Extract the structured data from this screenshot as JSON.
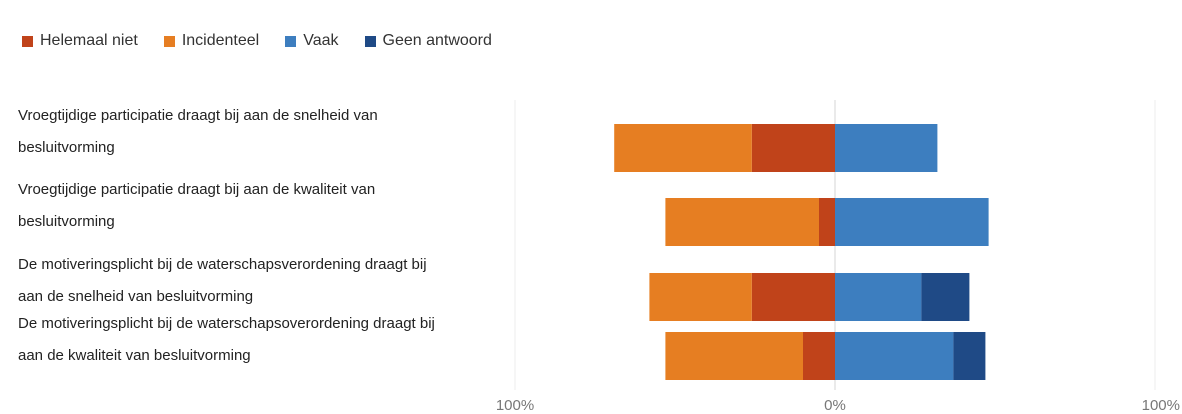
{
  "chart_data": {
    "type": "bar",
    "orientation": "horizontal-diverging",
    "legend": [
      {
        "name": "Helemaal niet",
        "color": "#c0431a"
      },
      {
        "name": "Incidenteel",
        "color": "#e67e22"
      },
      {
        "name": "Vaak",
        "color": "#3d7ebf"
      },
      {
        "name": "Geen antwoord",
        "color": "#1f4a86"
      }
    ],
    "categories": [
      [
        "Vroegtijdige participatie draagt bij aan de snelheid van",
        "besluitvorming"
      ],
      [
        "Vroegtijdige participatie draagt bij aan de kwaliteit van",
        "besluitvorming"
      ],
      [
        "De motiveringsplicht bij de waterschapsverordening draagt bij",
        "aan de snelheid van besluitvorming"
      ],
      [
        "De motiveringsplicht bij de waterschapsoverordening draagt bij",
        "aan de kwaliteit van besluitvorming"
      ]
    ],
    "series": [
      {
        "name": "Helemaal niet",
        "side": "negative",
        "values": [
          26,
          5,
          26,
          10
        ]
      },
      {
        "name": "Incidenteel",
        "side": "negative",
        "values": [
          43,
          48,
          32,
          43
        ]
      },
      {
        "name": "Vaak",
        "side": "positive",
        "values": [
          32,
          48,
          27,
          37
        ]
      },
      {
        "name": "Geen antwoord",
        "side": "positive",
        "values": [
          0,
          0,
          15,
          10
        ]
      }
    ],
    "xlim": [
      -100,
      100
    ],
    "ticks": [
      {
        "value": -100,
        "label": "100%"
      },
      {
        "value": 0,
        "label": "0%"
      },
      {
        "value": 100,
        "label": "100%"
      }
    ],
    "grid": true
  }
}
